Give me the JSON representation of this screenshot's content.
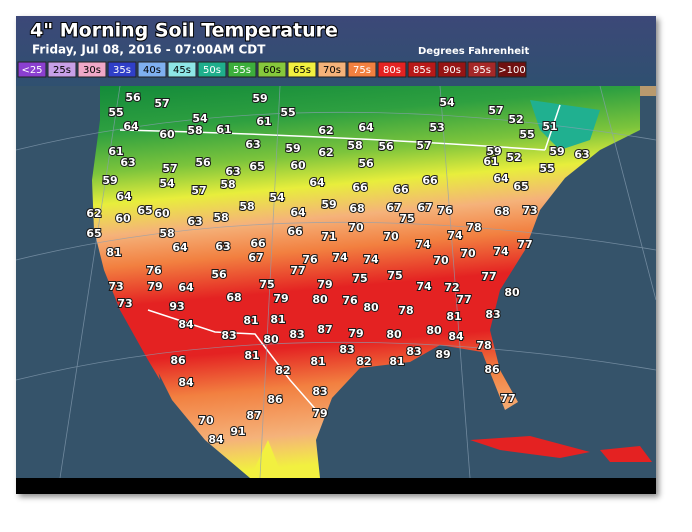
{
  "header": {
    "title": "4\" Morning Soil Temperature",
    "subtitle": "Friday, Jul 08, 2016 - 07:00AM CDT",
    "units": "Degrees Fahrenheit"
  },
  "legend": [
    {
      "label": "<25",
      "color": "#8b3fd0"
    },
    {
      "label": "25s",
      "color": "#c8a0e8"
    },
    {
      "label": "30s",
      "color": "#f0a8c8"
    },
    {
      "label": "35s",
      "color": "#2f3fc8"
    },
    {
      "label": "40s",
      "color": "#7fb0f0"
    },
    {
      "label": "45s",
      "color": "#8ee6e6"
    },
    {
      "label": "50s",
      "color": "#1fae8c"
    },
    {
      "label": "55s",
      "color": "#3cae3c"
    },
    {
      "label": "60s",
      "color": "#86c83c"
    },
    {
      "label": "65s",
      "color": "#f2f040"
    },
    {
      "label": "70s",
      "color": "#f5b27a"
    },
    {
      "label": "75s",
      "color": "#f28040"
    },
    {
      "label": "80s",
      "color": "#e42222"
    },
    {
      "label": "85s",
      "color": "#b81818"
    },
    {
      "label": "90s",
      "color": "#961414"
    },
    {
      "label": "95s",
      "color": "#a52828"
    },
    {
      "label": ">100",
      "color": "#701010"
    }
  ],
  "readings": [
    56,
    57,
    59,
    55,
    54,
    57,
    52,
    51,
    55,
    54,
    61,
    64,
    58,
    61,
    62,
    64,
    53,
    55,
    60,
    61,
    63,
    63,
    59,
    62,
    58,
    56,
    57,
    59,
    52,
    59,
    63,
    56,
    57,
    63,
    65,
    60,
    56,
    61,
    55,
    59,
    54,
    58,
    57,
    64,
    66,
    66,
    66,
    64,
    65,
    64,
    54,
    59,
    65,
    60,
    58,
    64,
    68,
    67,
    75,
    67,
    76,
    68,
    73,
    62,
    60,
    63,
    58,
    71,
    70,
    70,
    74,
    74,
    78,
    74,
    77,
    65,
    58,
    64,
    66,
    66,
    63,
    67,
    81,
    77,
    76,
    74,
    74,
    70,
    70,
    76,
    56,
    75,
    75,
    77,
    73,
    79,
    64,
    75,
    79,
    74,
    72,
    80,
    68,
    79,
    80,
    76,
    80,
    78,
    77,
    73,
    93,
    83,
    81,
    81,
    84,
    81,
    83,
    80,
    83,
    87,
    79,
    80,
    80,
    84,
    78,
    81,
    81,
    83,
    82,
    81,
    83,
    89,
    86,
    82,
    86,
    84,
    83,
    77,
    86,
    79,
    87,
    70,
    91,
    84
  ]
}
